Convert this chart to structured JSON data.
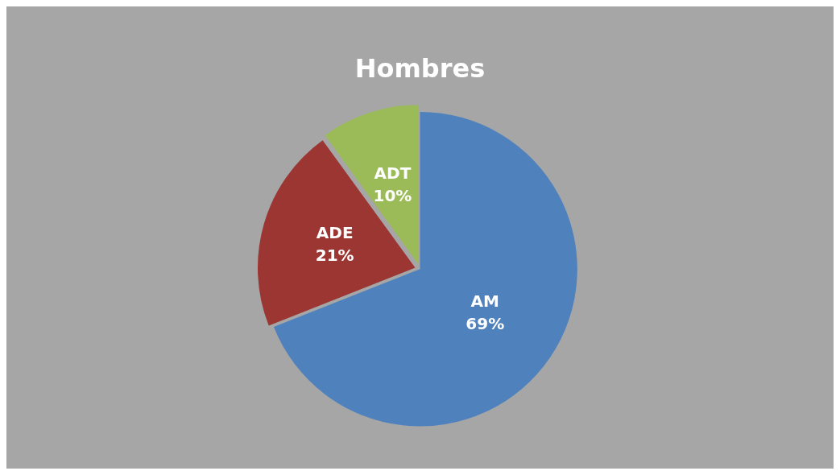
{
  "chart_data": {
    "type": "pie",
    "title": "Hombres",
    "categories": [
      "AM",
      "ADE",
      "ADT"
    ],
    "values": [
      69,
      21,
      10
    ],
    "colors": [
      "#4f81bd",
      "#9b3633",
      "#9bbb59"
    ],
    "value_labels": [
      "69%",
      "21%",
      "10%"
    ],
    "legend": false
  }
}
